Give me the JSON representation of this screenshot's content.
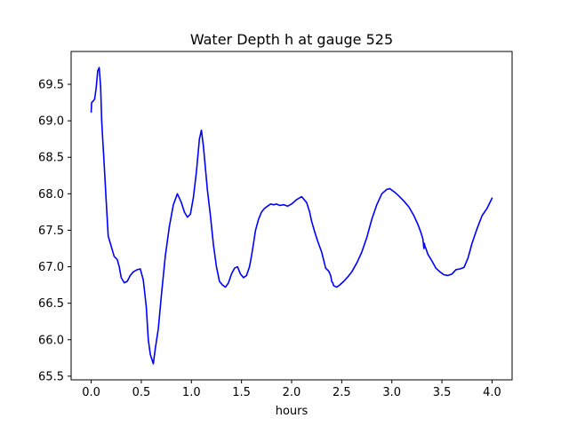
{
  "chart_data": {
    "type": "line",
    "title": "Water Depth h at gauge 525",
    "xlabel": "hours",
    "ylabel": "",
    "xlim": [
      -0.2,
      4.2
    ],
    "ylim": [
      65.45,
      69.95
    ],
    "xticks": [
      0.0,
      0.5,
      1.0,
      1.5,
      2.0,
      2.5,
      3.0,
      3.5,
      4.0
    ],
    "xtick_labels": [
      "0.0",
      "0.5",
      "1.0",
      "1.5",
      "2.0",
      "2.5",
      "3.0",
      "3.5",
      "4.0"
    ],
    "yticks": [
      65.5,
      66.0,
      66.5,
      67.0,
      67.5,
      68.0,
      68.5,
      69.0,
      69.5
    ],
    "ytick_labels": [
      "65.5",
      "66.0",
      "66.5",
      "67.0",
      "67.5",
      "68.0",
      "68.5",
      "69.0",
      "69.5"
    ],
    "grid": false,
    "series": [
      {
        "color": "#0000ff",
        "x": [
          0.0,
          0.005,
          0.02,
          0.035,
          0.05,
          0.065,
          0.08,
          0.095,
          0.105,
          0.115,
          0.13,
          0.15,
          0.17,
          0.2,
          0.23,
          0.26,
          0.28,
          0.3,
          0.33,
          0.36,
          0.39,
          0.42,
          0.46,
          0.49,
          0.52,
          0.55,
          0.57,
          0.59,
          0.62,
          0.64,
          0.67,
          0.7,
          0.74,
          0.78,
          0.82,
          0.86,
          0.9,
          0.93,
          0.96,
          0.99,
          1.02,
          1.05,
          1.08,
          1.1,
          1.12,
          1.14,
          1.16,
          1.19,
          1.22,
          1.25,
          1.28,
          1.31,
          1.34,
          1.37,
          1.4,
          1.43,
          1.46,
          1.49,
          1.52,
          1.55,
          1.58,
          1.6,
          1.62,
          1.64,
          1.67,
          1.7,
          1.73,
          1.76,
          1.79,
          1.82,
          1.85,
          1.88,
          1.92,
          1.96,
          2.0,
          2.05,
          2.1,
          2.15,
          2.18,
          2.2,
          2.23,
          2.26,
          2.3,
          2.34,
          2.37,
          2.39,
          2.4,
          2.41,
          2.42,
          2.45,
          2.48,
          2.52,
          2.56,
          2.6,
          2.65,
          2.7,
          2.75,
          2.8,
          2.85,
          2.9,
          2.95,
          2.98,
          3.0,
          3.03,
          3.07,
          3.12,
          3.17,
          3.22,
          3.26,
          3.29,
          3.31,
          3.32,
          3.325,
          3.33,
          3.34,
          3.36,
          3.4,
          3.44,
          3.48,
          3.52,
          3.56,
          3.6,
          3.64,
          3.68,
          3.72,
          3.76,
          3.8,
          3.85,
          3.9,
          3.95,
          4.0
        ],
        "y": [
          69.12,
          69.25,
          69.27,
          69.3,
          69.45,
          69.68,
          69.73,
          69.45,
          69.0,
          68.75,
          68.4,
          67.9,
          67.42,
          67.28,
          67.14,
          67.1,
          67.0,
          66.85,
          66.78,
          66.8,
          66.88,
          66.93,
          66.96,
          66.97,
          66.82,
          66.45,
          66.0,
          65.8,
          65.67,
          65.88,
          66.15,
          66.6,
          67.15,
          67.55,
          67.85,
          68.0,
          67.88,
          67.75,
          67.68,
          67.72,
          67.95,
          68.3,
          68.75,
          68.87,
          68.65,
          68.35,
          68.05,
          67.7,
          67.3,
          67.0,
          66.8,
          66.75,
          66.72,
          66.78,
          66.9,
          66.98,
          67.0,
          66.9,
          66.85,
          66.88,
          67.0,
          67.15,
          67.32,
          67.5,
          67.65,
          67.75,
          67.8,
          67.83,
          67.86,
          67.85,
          67.86,
          67.84,
          67.85,
          67.83,
          67.86,
          67.92,
          67.96,
          67.88,
          67.75,
          67.62,
          67.48,
          67.35,
          67.2,
          66.98,
          66.94,
          66.88,
          66.8,
          66.78,
          66.74,
          66.72,
          66.75,
          66.8,
          66.86,
          66.93,
          67.05,
          67.2,
          67.4,
          67.65,
          67.85,
          68.0,
          68.06,
          68.07,
          68.05,
          68.02,
          67.97,
          67.9,
          67.82,
          67.7,
          67.58,
          67.47,
          67.38,
          67.25,
          67.32,
          67.28,
          67.25,
          67.17,
          67.08,
          66.98,
          66.93,
          66.89,
          66.88,
          66.9,
          66.96,
          66.97,
          66.99,
          67.12,
          67.32,
          67.52,
          67.7,
          67.8,
          67.94
        ]
      }
    ]
  }
}
